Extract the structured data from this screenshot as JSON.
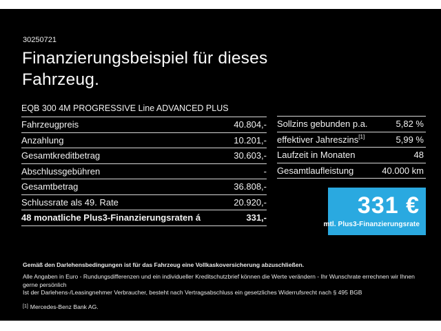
{
  "page": {
    "doc_number": "30250721",
    "title": "Finanzierungsbeispiel für dieses Fahrzeug.",
    "vehicle_model": "EQB 300 4M PROGRESSIVE Line ADVANCED PLUS"
  },
  "finance_table": {
    "rows": [
      {
        "label": "Fahrzeugpreis",
        "value": "40.804,-",
        "bold": false
      },
      {
        "label": "Anzahlung",
        "value": "10.201,-",
        "bold": false
      },
      {
        "label": "Gesamtkreditbetrag",
        "value": "30.603,-",
        "bold": false
      },
      {
        "label": "Abschlussgebühren",
        "value": "-",
        "bold": false
      },
      {
        "label": "Gesamtbetrag",
        "value": "36.808,-",
        "bold": false
      },
      {
        "label": "Schlussrate als 49. Rate",
        "value": "20.920,-",
        "bold": false
      },
      {
        "label": "48 monatliche Plus3-Finanzierungsraten á",
        "value": "331,-",
        "bold": true
      }
    ]
  },
  "conditions_table": {
    "rows": [
      {
        "label": "Sollzins gebunden p.a.",
        "label_sup": "",
        "value": "5,82 %"
      },
      {
        "label": "effektiver Jahreszins",
        "label_sup": "[1]",
        "value": "5,99 %"
      },
      {
        "label": "Laufzeit in Monaten",
        "label_sup": "",
        "value": "48"
      },
      {
        "label": "Gesamtlaufleistung",
        "label_sup": "",
        "value": "40.000 km"
      }
    ]
  },
  "rate_box": {
    "amount": "331 €",
    "caption": "mtl. Plus3-Finanzierungsrate",
    "background_color": "#2aa9e0"
  },
  "footnotes": {
    "bold_line": "Gemäß den Darlehensbedingungen ist für das Fahrzeug eine Vollkaskoversicherung abzuschließen.",
    "line2": "Alle Angaben in Euro - Rundungsdifferenzen und ein individueller Kreditschutzbrief können die Werte verändern - Ihr Wunschrate errechnen wir Ihnen gerne persönlich",
    "line3": "Ist der Darlehens-/Leasingnehmer Verbraucher, besteht nach Vertragsabschluss ein gesetzliches Widerrufsrecht nach § 495 BGB",
    "ref_mark": "[1]",
    "ref_text": "Mercedes-Benz Bank AG."
  },
  "colors": {
    "background": "#000000",
    "text": "#f5f5f5",
    "divider": "#d9d9d9",
    "accent_blue": "#2aa9e0",
    "letterbox": "#ffffff"
  }
}
